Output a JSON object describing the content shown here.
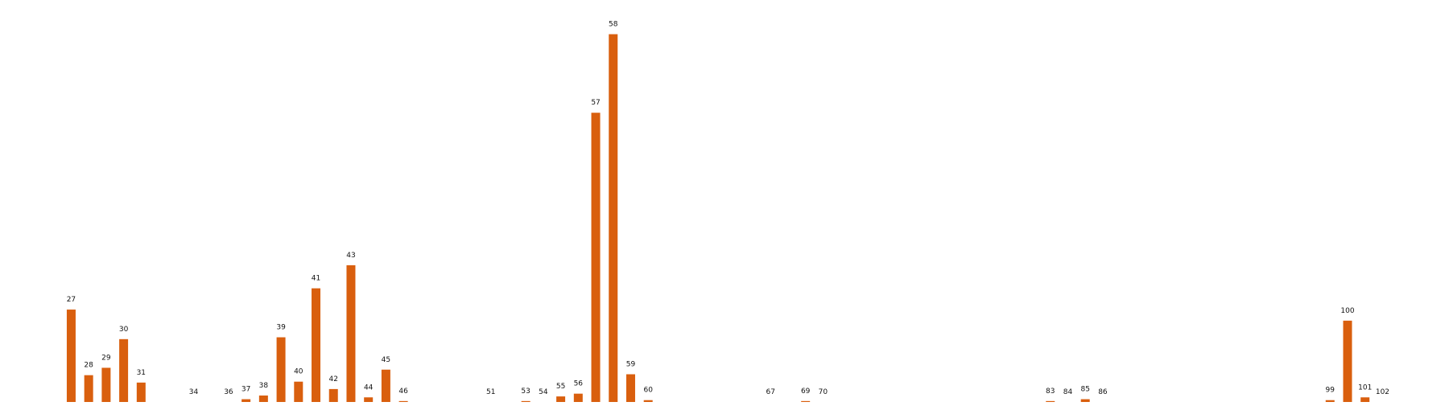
{
  "chart_data": {
    "type": "bar",
    "title": "",
    "xlabel": "",
    "ylabel": "",
    "grid": false,
    "legend": "none",
    "bar_color": "#d95f0e",
    "categories": [
      "27",
      "28",
      "29",
      "30",
      "31",
      "34",
      "36",
      "37",
      "38",
      "39",
      "40",
      "41",
      "42",
      "43",
      "44",
      "45",
      "46",
      "51",
      "53",
      "54",
      "55",
      "56",
      "57",
      "58",
      "59",
      "60",
      "67",
      "69",
      "70",
      "83",
      "84",
      "85",
      "86",
      "99",
      "100",
      "101",
      "102"
    ],
    "values": [
      100,
      29,
      37,
      68,
      21,
      0,
      0,
      3,
      7,
      70,
      22,
      123,
      14,
      148,
      5,
      35,
      1,
      0,
      1,
      0,
      6,
      9,
      313,
      398,
      30,
      2,
      0,
      1,
      0,
      1,
      0,
      3,
      0,
      2,
      88,
      5,
      0
    ],
    "ylim": [
      0,
      415
    ]
  }
}
